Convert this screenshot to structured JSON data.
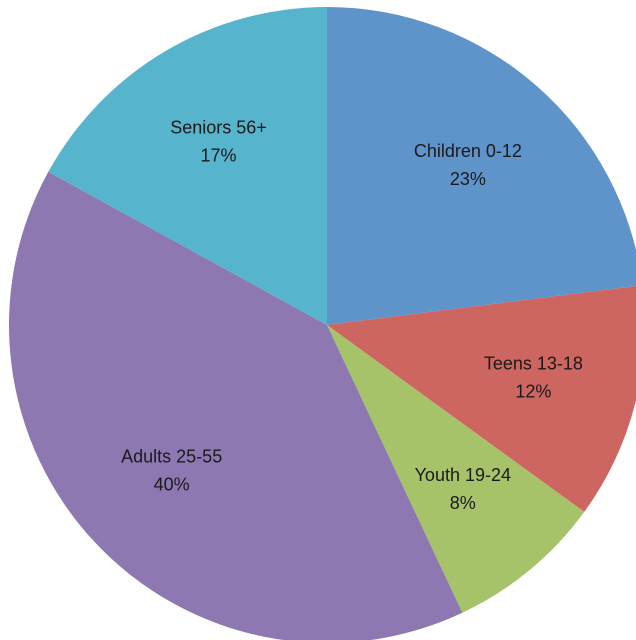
{
  "chart_data": {
    "type": "pie",
    "categories": [
      "Children 0-12",
      "Teens 13-18",
      "Youth 19-24",
      "Adults 25-55",
      "Seniors 56+"
    ],
    "values": [
      23,
      12,
      8,
      40,
      17
    ],
    "value_labels": [
      "23%",
      "12%",
      "8%",
      "40%",
      "17%"
    ],
    "colors": [
      "#5f94ca",
      "#cd6560",
      "#a6c36a",
      "#8e78b1",
      "#56b4cd"
    ]
  }
}
